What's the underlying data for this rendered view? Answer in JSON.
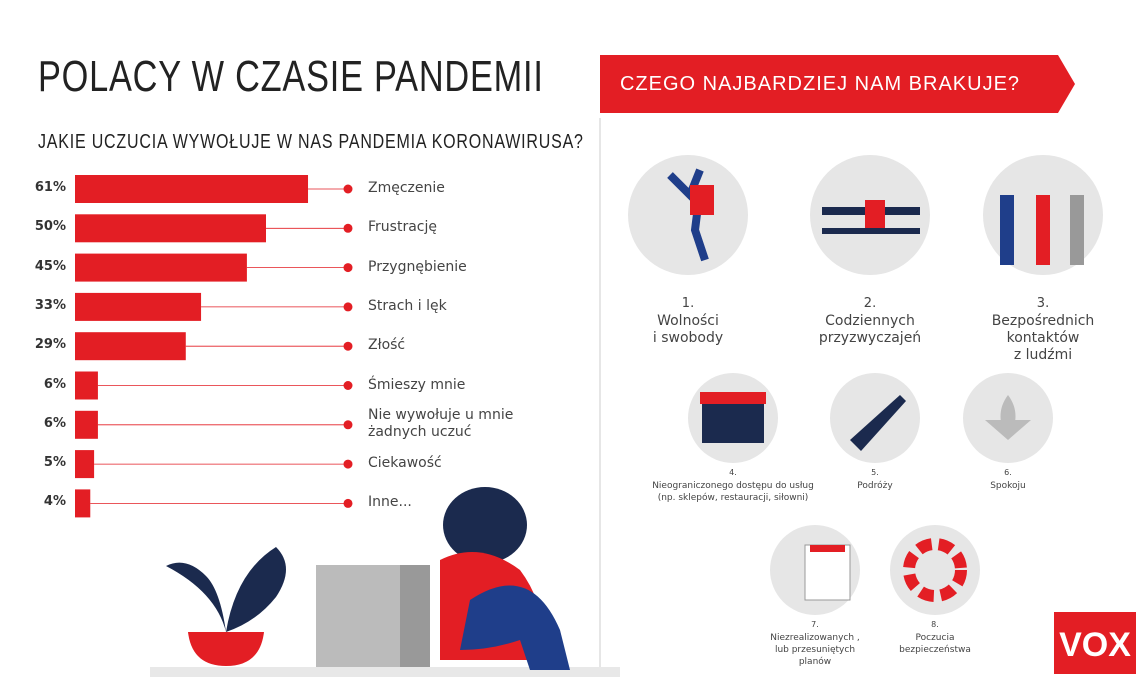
{
  "title": "POLACY W CZASIE PANDEMII",
  "chart_data": {
    "type": "bar",
    "orientation": "horizontal",
    "title": "JAKIE UCZUCIA WYWOŁUJE W NAS PANDEMIA KORONAWIRUSA?",
    "categories": [
      "Zmęczenie",
      "Frustrację",
      "Przygnębienie",
      "Strach i lęk",
      "Złość",
      "Śmieszy mnie",
      "Nie wywołuje u mnie\nżadnych uczuć",
      "Ciekawość",
      "Inne..."
    ],
    "values": [
      61,
      50,
      45,
      33,
      29,
      6,
      6,
      5,
      4
    ],
    "value_labels": [
      "61%",
      "50%",
      "45%",
      "33%",
      "29%",
      "6%",
      "6%",
      "5%",
      "4%"
    ],
    "color": "#e31e24"
  },
  "panel": {
    "title": "CZEGO NAJBARDZIEJ NAM BRAKUJE?",
    "items": [
      {
        "number": "1.",
        "label": "Wolności\ni swobody"
      },
      {
        "number": "2.",
        "label": "Codziennych\nprzyzwyczajeń"
      },
      {
        "number": "3.",
        "label": "Bezpośrednich\nkontaktów\nz ludźmi"
      },
      {
        "number": "4.",
        "label": "Nieograniczonego dostępu do usług\n(np. sklepów, restauracji, siłowni)"
      },
      {
        "number": "5.",
        "label": "Podróży"
      },
      {
        "number": "6.",
        "label": "Spokoju"
      },
      {
        "number": "7.",
        "label": "Niezrealizowanych ,\nlub przesuniętych\nplanów"
      },
      {
        "number": "8.",
        "label": "Poczucia\nbezpieczeństwa"
      }
    ]
  },
  "logo": "VOX"
}
